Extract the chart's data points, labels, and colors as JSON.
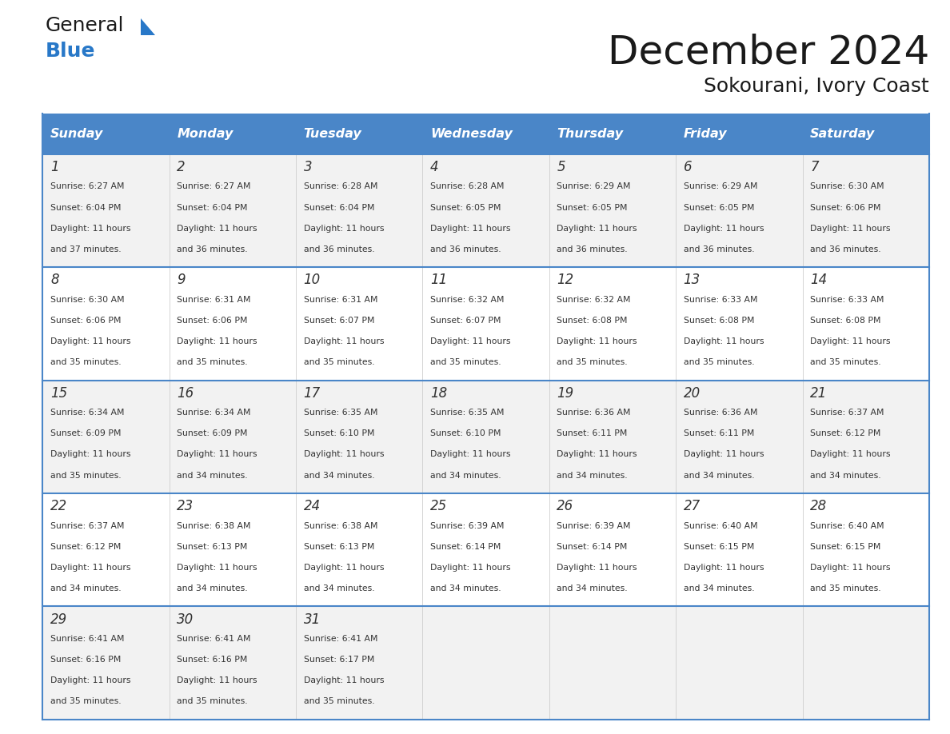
{
  "title": "December 2024",
  "subtitle": "Sokourani, Ivory Coast",
  "days_of_week": [
    "Sunday",
    "Monday",
    "Tuesday",
    "Wednesday",
    "Thursday",
    "Friday",
    "Saturday"
  ],
  "header_bg": "#4a86c8",
  "header_text": "#ffffff",
  "row_bg_odd": "#f2f2f2",
  "row_bg_even": "#ffffff",
  "border_color": "#4a86c8",
  "text_color": "#333333",
  "calendar_data": [
    [
      {
        "day": 1,
        "sunrise": "6:27 AM",
        "sunset": "6:04 PM",
        "daylight": "11 hours and 37 minutes."
      },
      {
        "day": 2,
        "sunrise": "6:27 AM",
        "sunset": "6:04 PM",
        "daylight": "11 hours and 36 minutes."
      },
      {
        "day": 3,
        "sunrise": "6:28 AM",
        "sunset": "6:04 PM",
        "daylight": "11 hours and 36 minutes."
      },
      {
        "day": 4,
        "sunrise": "6:28 AM",
        "sunset": "6:05 PM",
        "daylight": "11 hours and 36 minutes."
      },
      {
        "day": 5,
        "sunrise": "6:29 AM",
        "sunset": "6:05 PM",
        "daylight": "11 hours and 36 minutes."
      },
      {
        "day": 6,
        "sunrise": "6:29 AM",
        "sunset": "6:05 PM",
        "daylight": "11 hours and 36 minutes."
      },
      {
        "day": 7,
        "sunrise": "6:30 AM",
        "sunset": "6:06 PM",
        "daylight": "11 hours and 36 minutes."
      }
    ],
    [
      {
        "day": 8,
        "sunrise": "6:30 AM",
        "sunset": "6:06 PM",
        "daylight": "11 hours and 35 minutes."
      },
      {
        "day": 9,
        "sunrise": "6:31 AM",
        "sunset": "6:06 PM",
        "daylight": "11 hours and 35 minutes."
      },
      {
        "day": 10,
        "sunrise": "6:31 AM",
        "sunset": "6:07 PM",
        "daylight": "11 hours and 35 minutes."
      },
      {
        "day": 11,
        "sunrise": "6:32 AM",
        "sunset": "6:07 PM",
        "daylight": "11 hours and 35 minutes."
      },
      {
        "day": 12,
        "sunrise": "6:32 AM",
        "sunset": "6:08 PM",
        "daylight": "11 hours and 35 minutes."
      },
      {
        "day": 13,
        "sunrise": "6:33 AM",
        "sunset": "6:08 PM",
        "daylight": "11 hours and 35 minutes."
      },
      {
        "day": 14,
        "sunrise": "6:33 AM",
        "sunset": "6:08 PM",
        "daylight": "11 hours and 35 minutes."
      }
    ],
    [
      {
        "day": 15,
        "sunrise": "6:34 AM",
        "sunset": "6:09 PM",
        "daylight": "11 hours and 35 minutes."
      },
      {
        "day": 16,
        "sunrise": "6:34 AM",
        "sunset": "6:09 PM",
        "daylight": "11 hours and 34 minutes."
      },
      {
        "day": 17,
        "sunrise": "6:35 AM",
        "sunset": "6:10 PM",
        "daylight": "11 hours and 34 minutes."
      },
      {
        "day": 18,
        "sunrise": "6:35 AM",
        "sunset": "6:10 PM",
        "daylight": "11 hours and 34 minutes."
      },
      {
        "day": 19,
        "sunrise": "6:36 AM",
        "sunset": "6:11 PM",
        "daylight": "11 hours and 34 minutes."
      },
      {
        "day": 20,
        "sunrise": "6:36 AM",
        "sunset": "6:11 PM",
        "daylight": "11 hours and 34 minutes."
      },
      {
        "day": 21,
        "sunrise": "6:37 AM",
        "sunset": "6:12 PM",
        "daylight": "11 hours and 34 minutes."
      }
    ],
    [
      {
        "day": 22,
        "sunrise": "6:37 AM",
        "sunset": "6:12 PM",
        "daylight": "11 hours and 34 minutes."
      },
      {
        "day": 23,
        "sunrise": "6:38 AM",
        "sunset": "6:13 PM",
        "daylight": "11 hours and 34 minutes."
      },
      {
        "day": 24,
        "sunrise": "6:38 AM",
        "sunset": "6:13 PM",
        "daylight": "11 hours and 34 minutes."
      },
      {
        "day": 25,
        "sunrise": "6:39 AM",
        "sunset": "6:14 PM",
        "daylight": "11 hours and 34 minutes."
      },
      {
        "day": 26,
        "sunrise": "6:39 AM",
        "sunset": "6:14 PM",
        "daylight": "11 hours and 34 minutes."
      },
      {
        "day": 27,
        "sunrise": "6:40 AM",
        "sunset": "6:15 PM",
        "daylight": "11 hours and 34 minutes."
      },
      {
        "day": 28,
        "sunrise": "6:40 AM",
        "sunset": "6:15 PM",
        "daylight": "11 hours and 35 minutes."
      }
    ],
    [
      {
        "day": 29,
        "sunrise": "6:41 AM",
        "sunset": "6:16 PM",
        "daylight": "11 hours and 35 minutes."
      },
      {
        "day": 30,
        "sunrise": "6:41 AM",
        "sunset": "6:16 PM",
        "daylight": "11 hours and 35 minutes."
      },
      {
        "day": 31,
        "sunrise": "6:41 AM",
        "sunset": "6:17 PM",
        "daylight": "11 hours and 35 minutes."
      },
      null,
      null,
      null,
      null
    ]
  ]
}
